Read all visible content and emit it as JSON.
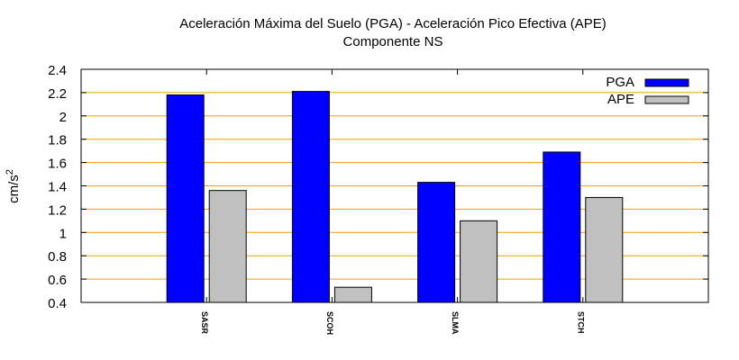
{
  "chart_data": {
    "type": "bar",
    "title": "Aceleración Máxima del Suelo (PGA) -  Aceleración Pico Efectiva (APE)",
    "subtitle": "Componente NS",
    "ylabel": "cm/s",
    "ylabel_sup": "2",
    "xlabel": "",
    "ylim": [
      0.4,
      2.4
    ],
    "yticks": [
      "0.4",
      "0.6",
      "0.8",
      "1",
      "1.2",
      "1.4",
      "1.6",
      "1.8",
      "2",
      "2.2",
      "2.4"
    ],
    "categories": [
      "SASR",
      "SCOH",
      "SLMA",
      "STCH"
    ],
    "series": [
      {
        "name": "PGA",
        "color": "#0000ff",
        "values": [
          2.18,
          2.21,
          1.43,
          1.69
        ]
      },
      {
        "name": "APE",
        "color": "#c0c0c0",
        "values": [
          1.36,
          0.53,
          1.1,
          1.3
        ]
      }
    ],
    "grid": true,
    "grid_color": "#f0a000",
    "legend_position": "top-right"
  }
}
